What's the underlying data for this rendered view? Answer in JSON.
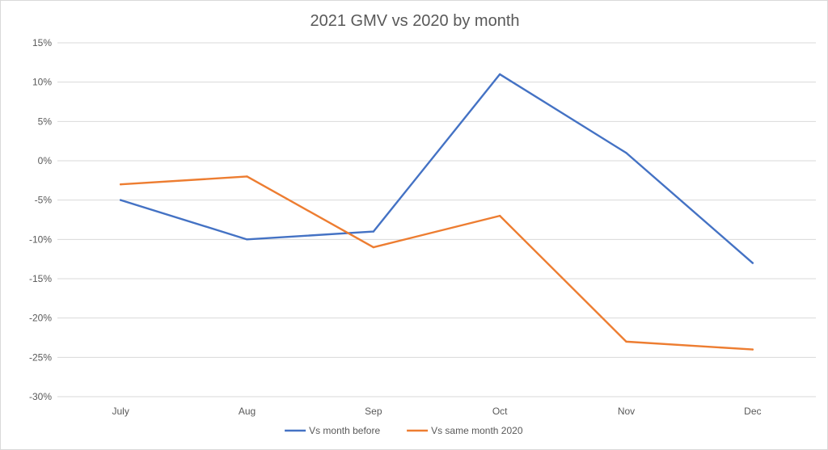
{
  "chart_data": {
    "type": "line",
    "title": "2021 GMV vs 2020 by month",
    "xlabel": "",
    "ylabel": "",
    "categories": [
      "July",
      "Aug",
      "Sep",
      "Oct",
      "Nov",
      "Dec"
    ],
    "ylim": [
      -30,
      15
    ],
    "y_ticks": [
      15,
      10,
      5,
      0,
      -5,
      -10,
      -15,
      -20,
      -25,
      -30
    ],
    "y_tick_labels": [
      "15%",
      "10%",
      "5%",
      "0%",
      "-5%",
      "-10%",
      "-15%",
      "-20%",
      "-25%",
      "-30%"
    ],
    "grid": true,
    "legend_position": "bottom",
    "series": [
      {
        "name": "Vs month before",
        "color": "#4472c4",
        "values": [
          -5,
          -10,
          -9,
          11,
          1,
          -13
        ]
      },
      {
        "name": "Vs same month 2020",
        "color": "#ed7d31",
        "values": [
          -3,
          -2,
          -11,
          -7,
          -23,
          -24
        ]
      }
    ]
  }
}
